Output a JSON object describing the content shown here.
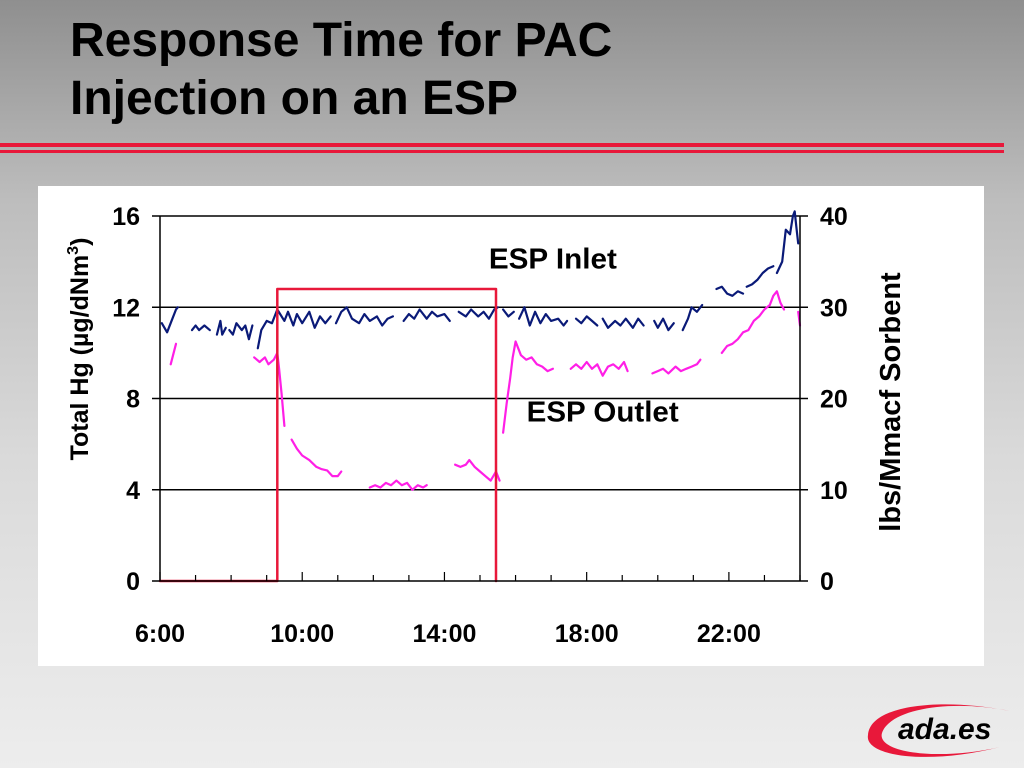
{
  "slide": {
    "title_line1": "Response Time for PAC",
    "title_line2": "Injection on an ESP"
  },
  "logo": {
    "text": "ada.es",
    "accent_color": "#e8183a"
  },
  "chart_data": {
    "type": "line",
    "title": "",
    "xlabel": "",
    "ylabel_left": "Total Hg (µg/dNm³)",
    "ylabel_left_base": "Total Hg (µg/dNm",
    "ylabel_left_sup": "3",
    "ylabel_left_close": ")",
    "ylabel_right": "lbs/Mmacf Sorbent",
    "x_unit": "hour of day",
    "xlim": [
      6,
      24
    ],
    "x_ticks": [
      6,
      10,
      14,
      18,
      22
    ],
    "x_tick_labels": [
      "6:00",
      "10:00",
      "14:00",
      "18:00",
      "22:00"
    ],
    "ylim_left": [
      0,
      16
    ],
    "y_ticks_left": [
      0,
      4,
      8,
      12,
      16
    ],
    "y_tick_labels_left": [
      "0",
      "4",
      "8",
      "12",
      "16"
    ],
    "ylim_right": [
      0,
      40
    ],
    "y_ticks_right": [
      0,
      10,
      20,
      30,
      40
    ],
    "y_tick_labels_right": [
      "0",
      "10",
      "20",
      "30",
      "40"
    ],
    "grid": "horizontal",
    "annotations": [
      {
        "text": "ESP Inlet",
        "x": 17.05,
        "y": 13.7
      },
      {
        "text": "ESP Outlet",
        "x": 18.45,
        "y": 7.0
      }
    ],
    "series": [
      {
        "name": "ESP Inlet",
        "axis": "left",
        "color": "#0a1a78",
        "segments": [
          [
            [
              6.05,
              11.3
            ],
            [
              6.2,
              10.9
            ],
            [
              6.35,
              11.5
            ],
            [
              6.45,
              11.9
            ],
            [
              6.5,
              12.0
            ]
          ],
          [
            [
              6.9,
              11.0
            ],
            [
              7.0,
              11.2
            ],
            [
              7.1,
              11.0
            ],
            [
              7.25,
              11.2
            ],
            [
              7.4,
              11.0
            ]
          ],
          [
            [
              7.6,
              10.8
            ],
            [
              7.7,
              11.4
            ],
            [
              7.75,
              10.8
            ],
            [
              7.85,
              11.1
            ]
          ],
          [
            [
              7.95,
              11.0
            ],
            [
              8.05,
              10.8
            ],
            [
              8.15,
              11.3
            ],
            [
              8.3,
              11.0
            ],
            [
              8.4,
              11.2
            ],
            [
              8.5,
              10.6
            ],
            [
              8.6,
              11.2
            ]
          ],
          [
            [
              8.75,
              10.2
            ],
            [
              8.85,
              11.0
            ],
            [
              9.0,
              11.4
            ],
            [
              9.15,
              11.3
            ],
            [
              9.3,
              11.9
            ],
            [
              9.5,
              11.4
            ],
            [
              9.6,
              11.8
            ],
            [
              9.75,
              11.2
            ],
            [
              9.85,
              11.7
            ],
            [
              10.0,
              11.3
            ],
            [
              10.2,
              11.8
            ],
            [
              10.35,
              11.1
            ],
            [
              10.5,
              11.6
            ],
            [
              10.65,
              11.3
            ],
            [
              10.8,
              11.6
            ]
          ],
          [
            [
              10.95,
              11.3
            ],
            [
              11.1,
              11.8
            ],
            [
              11.25,
              12.0
            ],
            [
              11.4,
              11.5
            ],
            [
              11.6,
              11.3
            ],
            [
              11.75,
              11.7
            ],
            [
              11.9,
              11.4
            ],
            [
              12.1,
              11.6
            ],
            [
              12.25,
              11.2
            ],
            [
              12.4,
              11.5
            ],
            [
              12.55,
              11.6
            ]
          ],
          [
            [
              12.85,
              11.4
            ],
            [
              13.0,
              11.7
            ],
            [
              13.15,
              11.5
            ],
            [
              13.3,
              11.9
            ],
            [
              13.5,
              11.5
            ],
            [
              13.65,
              11.8
            ],
            [
              13.8,
              11.6
            ],
            [
              14.0,
              11.7
            ],
            [
              14.15,
              11.4
            ]
          ],
          [
            [
              14.4,
              11.8
            ],
            [
              14.6,
              11.6
            ],
            [
              14.75,
              11.9
            ],
            [
              14.95,
              11.6
            ],
            [
              15.1,
              11.8
            ],
            [
              15.25,
              11.5
            ],
            [
              15.4,
              11.9
            ],
            [
              15.5,
              12.0
            ]
          ],
          [
            [
              15.65,
              11.9
            ],
            [
              15.8,
              11.6
            ],
            [
              15.95,
              11.8
            ]
          ],
          [
            [
              16.1,
              11.5
            ],
            [
              16.25,
              12.0
            ],
            [
              16.4,
              11.2
            ],
            [
              16.55,
              11.8
            ],
            [
              16.7,
              11.3
            ],
            [
              16.85,
              11.7
            ],
            [
              17.0,
              11.4
            ],
            [
              17.2,
              11.5
            ],
            [
              17.35,
              11.2
            ],
            [
              17.45,
              11.4
            ]
          ],
          [
            [
              17.7,
              11.5
            ],
            [
              17.85,
              11.3
            ],
            [
              18.0,
              11.6
            ],
            [
              18.15,
              11.4
            ],
            [
              18.3,
              11.2
            ]
          ],
          [
            [
              18.45,
              11.5
            ],
            [
              18.6,
              11.1
            ],
            [
              18.8,
              11.4
            ],
            [
              18.95,
              11.2
            ],
            [
              19.1,
              11.5
            ],
            [
              19.3,
              11.1
            ],
            [
              19.45,
              11.5
            ],
            [
              19.6,
              11.2
            ]
          ],
          [
            [
              19.9,
              11.4
            ],
            [
              20.0,
              11.1
            ],
            [
              20.15,
              11.5
            ],
            [
              20.3,
              11.0
            ],
            [
              20.45,
              11.3
            ]
          ],
          [
            [
              20.7,
              11.0
            ],
            [
              20.85,
              11.5
            ],
            [
              20.95,
              12.0
            ],
            [
              21.1,
              11.8
            ],
            [
              21.25,
              12.1
            ]
          ],
          [
            [
              21.65,
              12.8
            ],
            [
              21.8,
              12.9
            ],
            [
              21.95,
              12.6
            ],
            [
              22.1,
              12.5
            ],
            [
              22.25,
              12.7
            ],
            [
              22.4,
              12.6
            ]
          ],
          [
            [
              22.5,
              12.9
            ],
            [
              22.65,
              13.0
            ],
            [
              22.8,
              13.2
            ],
            [
              22.95,
              13.5
            ],
            [
              23.1,
              13.7
            ],
            [
              23.25,
              13.8
            ]
          ],
          [
            [
              23.35,
              13.5
            ],
            [
              23.5,
              14.0
            ],
            [
              23.6,
              15.4
            ],
            [
              23.72,
              15.2
            ],
            [
              23.8,
              16.0
            ],
            [
              23.85,
              16.2
            ],
            [
              23.9,
              15.5
            ],
            [
              23.95,
              14.8
            ]
          ]
        ]
      },
      {
        "name": "ESP Outlet",
        "axis": "left",
        "color": "#ff1fe6",
        "segments": [
          [
            [
              6.3,
              9.5
            ],
            [
              6.45,
              10.4
            ]
          ],
          [
            [
              8.65,
              9.8
            ],
            [
              8.8,
              9.6
            ],
            [
              8.95,
              9.8
            ],
            [
              9.05,
              9.5
            ],
            [
              9.2,
              9.7
            ],
            [
              9.3,
              10.0
            ],
            [
              9.35,
              9.3
            ],
            [
              9.42,
              8.2
            ],
            [
              9.5,
              6.8
            ]
          ],
          [
            [
              9.7,
              6.2
            ],
            [
              9.85,
              5.8
            ],
            [
              10.0,
              5.5
            ],
            [
              10.2,
              5.3
            ],
            [
              10.4,
              5.0
            ],
            [
              10.55,
              4.9
            ],
            [
              10.7,
              4.85
            ],
            [
              10.85,
              4.6
            ],
            [
              11.0,
              4.6
            ],
            [
              11.1,
              4.8
            ]
          ],
          [
            [
              11.9,
              4.1
            ],
            [
              12.05,
              4.2
            ],
            [
              12.2,
              4.1
            ],
            [
              12.35,
              4.3
            ],
            [
              12.5,
              4.2
            ],
            [
              12.65,
              4.4
            ],
            [
              12.8,
              4.2
            ],
            [
              12.95,
              4.3
            ],
            [
              13.1,
              4.0
            ],
            [
              13.25,
              4.2
            ],
            [
              13.4,
              4.1
            ],
            [
              13.5,
              4.2
            ]
          ],
          [
            [
              14.3,
              5.1
            ],
            [
              14.45,
              5.0
            ],
            [
              14.6,
              5.1
            ],
            [
              14.7,
              5.3
            ],
            [
              14.85,
              5.0
            ],
            [
              15.0,
              4.8
            ],
            [
              15.15,
              4.6
            ],
            [
              15.3,
              4.4
            ],
            [
              15.45,
              4.8
            ],
            [
              15.55,
              4.4
            ]
          ],
          [
            [
              15.65,
              6.5
            ],
            [
              15.75,
              7.8
            ],
            [
              15.85,
              8.9
            ],
            [
              15.92,
              9.8
            ],
            [
              16.0,
              10.5
            ],
            [
              16.15,
              9.9
            ],
            [
              16.3,
              9.7
            ],
            [
              16.45,
              9.8
            ],
            [
              16.6,
              9.5
            ],
            [
              16.75,
              9.4
            ],
            [
              16.9,
              9.2
            ],
            [
              17.05,
              9.3
            ]
          ],
          [
            [
              17.55,
              9.3
            ],
            [
              17.7,
              9.5
            ],
            [
              17.85,
              9.3
            ],
            [
              18.0,
              9.6
            ],
            [
              18.15,
              9.3
            ],
            [
              18.3,
              9.5
            ],
            [
              18.45,
              9.0
            ],
            [
              18.6,
              9.4
            ],
            [
              18.75,
              9.5
            ],
            [
              18.9,
              9.3
            ],
            [
              19.05,
              9.6
            ],
            [
              19.15,
              9.2
            ]
          ],
          [
            [
              19.85,
              9.1
            ],
            [
              20.0,
              9.2
            ],
            [
              20.15,
              9.3
            ],
            [
              20.3,
              9.1
            ],
            [
              20.5,
              9.4
            ],
            [
              20.65,
              9.2
            ],
            [
              20.8,
              9.3
            ],
            [
              20.95,
              9.4
            ],
            [
              21.1,
              9.5
            ],
            [
              21.2,
              9.7
            ]
          ],
          [
            [
              21.8,
              10.0
            ],
            [
              21.95,
              10.3
            ],
            [
              22.1,
              10.4
            ],
            [
              22.25,
              10.6
            ],
            [
              22.4,
              10.9
            ],
            [
              22.55,
              11.0
            ],
            [
              22.7,
              11.4
            ],
            [
              22.85,
              11.6
            ],
            [
              23.0,
              11.9
            ],
            [
              23.15,
              12.1
            ],
            [
              23.25,
              12.5
            ],
            [
              23.35,
              12.7
            ],
            [
              23.45,
              12.2
            ],
            [
              23.55,
              11.9
            ]
          ],
          [
            [
              23.95,
              11.8
            ],
            [
              24.0,
              11.2
            ]
          ]
        ]
      },
      {
        "name": "Sorbent",
        "axis": "right",
        "color": "#e8183a",
        "points": [
          [
            6.0,
            0
          ],
          [
            9.3,
            0
          ],
          [
            9.3,
            32
          ],
          [
            15.45,
            32
          ],
          [
            15.45,
            0
          ]
        ]
      }
    ]
  }
}
